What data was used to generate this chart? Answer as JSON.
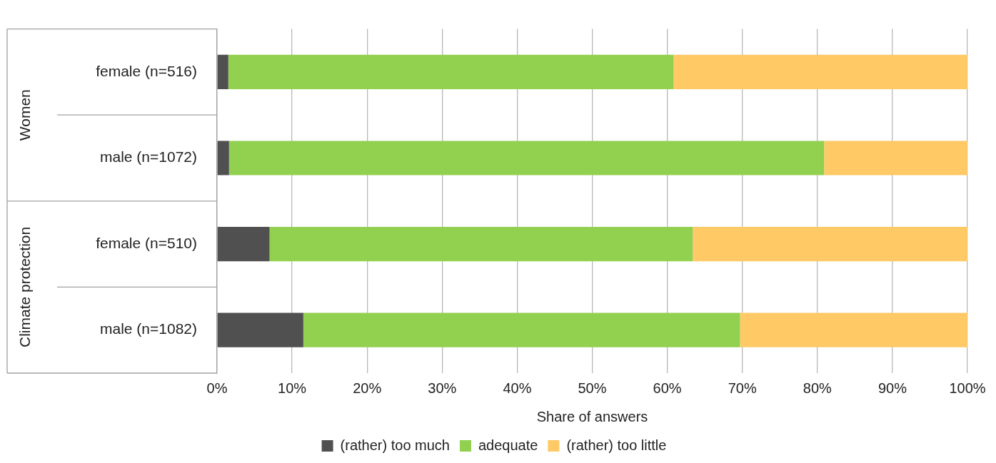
{
  "chart_data": {
    "type": "bar",
    "orientation": "horizontal",
    "stacked": true,
    "categories": [
      "female (n=516)",
      "male (n=1072)",
      "female (n=510)",
      "male (n=1082)"
    ],
    "series": [
      {
        "name": "(rather) too much",
        "color": "#505050",
        "values": [
          1.5,
          1.6,
          7.0,
          11.5
        ]
      },
      {
        "name": "adequate",
        "color": "#92d050",
        "values": [
          59.3,
          79.3,
          56.4,
          58.2
        ]
      },
      {
        "name": "(rather) too little",
        "color": "#ffc966",
        "values": [
          39.2,
          19.1,
          36.6,
          30.3
        ]
      }
    ],
    "xlim": [
      0,
      100
    ],
    "xticks": [
      {
        "value": 0,
        "label": "0%"
      },
      {
        "value": 10,
        "label": "10%"
      },
      {
        "value": 20,
        "label": "20%"
      },
      {
        "value": 30,
        "label": "30%"
      },
      {
        "value": 40,
        "label": "40%"
      },
      {
        "value": 50,
        "label": "50%"
      },
      {
        "value": 60,
        "label": "60%"
      },
      {
        "value": 70,
        "label": "70%"
      },
      {
        "value": 80,
        "label": "80%"
      },
      {
        "value": 90,
        "label": "90%"
      },
      {
        "value": 100,
        "label": "100%"
      }
    ],
    "xlabel": "Share of answers",
    "annotations": [
      "Women",
      "Climate protection"
    ],
    "grid": "x",
    "legend": "bottom"
  }
}
